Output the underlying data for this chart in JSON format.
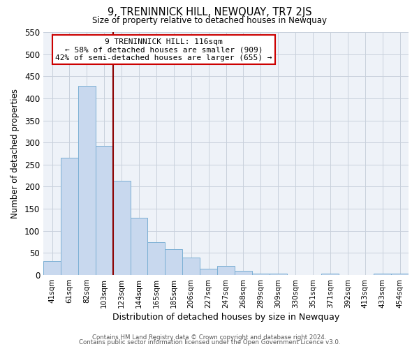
{
  "title": "9, TRENINNICK HILL, NEWQUAY, TR7 2JS",
  "subtitle": "Size of property relative to detached houses in Newquay",
  "xlabel": "Distribution of detached houses by size in Newquay",
  "ylabel": "Number of detached properties",
  "bar_color": "#c8d8ee",
  "bar_edge_color": "#7bafd4",
  "categories": [
    "41sqm",
    "61sqm",
    "82sqm",
    "103sqm",
    "123sqm",
    "144sqm",
    "165sqm",
    "185sqm",
    "206sqm",
    "227sqm",
    "247sqm",
    "268sqm",
    "289sqm",
    "309sqm",
    "330sqm",
    "351sqm",
    "371sqm",
    "392sqm",
    "413sqm",
    "433sqm",
    "454sqm"
  ],
  "values": [
    32,
    265,
    428,
    292,
    213,
    130,
    75,
    58,
    40,
    15,
    20,
    10,
    3,
    3,
    0,
    0,
    3,
    0,
    0,
    3,
    3
  ],
  "ylim": [
    0,
    550
  ],
  "yticks": [
    0,
    50,
    100,
    150,
    200,
    250,
    300,
    350,
    400,
    450,
    500,
    550
  ],
  "vline_index": 4,
  "vline_color": "#8b0000",
  "annotation_title": "9 TRENINNICK HILL: 116sqm",
  "annotation_line1": "← 58% of detached houses are smaller (909)",
  "annotation_line2": "42% of semi-detached houses are larger (655) →",
  "annotation_box_color": "#ffffff",
  "annotation_box_edge": "#cc0000",
  "footer1": "Contains HM Land Registry data © Crown copyright and database right 2024.",
  "footer2": "Contains public sector information licensed under the Open Government Licence v3.0.",
  "background_color": "#ffffff",
  "plot_bg_color": "#eef2f8",
  "grid_color": "#c8d0dc"
}
